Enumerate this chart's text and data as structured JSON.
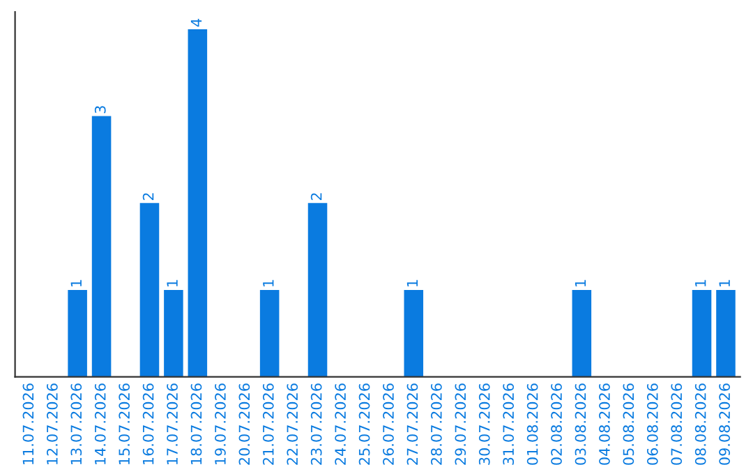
{
  "chart_data": {
    "type": "bar",
    "categories": [
      "11.07.2026",
      "12.07.2026",
      "13.07.2026",
      "14.07.2026",
      "15.07.2026",
      "16.07.2026",
      "17.07.2026",
      "18.07.2026",
      "19.07.2026",
      "20.07.2026",
      "21.07.2026",
      "22.07.2026",
      "23.07.2026",
      "24.07.2026",
      "25.07.2026",
      "26.07.2026",
      "27.07.2026",
      "28.07.2026",
      "29.07.2026",
      "30.07.2026",
      "31.07.2026",
      "01.08.2026",
      "02.08.2026",
      "03.08.2026",
      "04.08.2026",
      "05.08.2026",
      "06.08.2026",
      "07.08.2026",
      "08.08.2026",
      "09.08.2026"
    ],
    "values": [
      0,
      0,
      1,
      3,
      0,
      2,
      1,
      4,
      0,
      0,
      1,
      0,
      2,
      0,
      0,
      0,
      1,
      0,
      0,
      0,
      0,
      0,
      0,
      1,
      0,
      0,
      0,
      0,
      1,
      1
    ],
    "value_labels": [
      null,
      null,
      "1",
      "3",
      null,
      "2",
      "1",
      "4",
      null,
      null,
      "1",
      null,
      "2",
      null,
      null,
      null,
      "1",
      null,
      null,
      null,
      null,
      null,
      null,
      "1",
      null,
      null,
      null,
      null,
      "1",
      "1"
    ],
    "color": "#0a7be0",
    "grid": false,
    "legend": false
  }
}
